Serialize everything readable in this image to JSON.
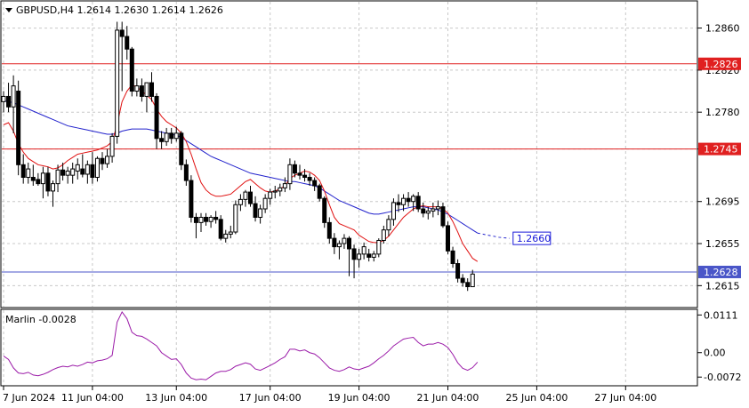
{
  "header": {
    "symbol_line": "GBPUSD,H4  1.2614 1.2630 1.2614 1.2626"
  },
  "chart_data": [
    {
      "type": "candlestick",
      "title": "GBPUSD,H4  1.2614 1.2630 1.2614 1.2626",
      "symbol": "GBPUSD",
      "timeframe": "H4",
      "last_ohlc": {
        "open": 1.2614,
        "high": 1.263,
        "low": 1.2614,
        "close": 1.2626
      },
      "ylim": [
        1.2595,
        1.2885
      ],
      "y_ticks": [
        "1.2860",
        "1.2820",
        "1.2780",
        "1.2745",
        "1.2695",
        "1.2655",
        "1.2615"
      ],
      "x_tick_labels": [
        "7 Jun 2024",
        "11 Jun 04:00",
        "13 Jun 04:00",
        "17 Jun 04:00",
        "19 Jun 04:00",
        "21 Jun 04:00",
        "25 Jun 04:00",
        "27 Jun 04:00"
      ],
      "x_tick_index": [
        0,
        18,
        35,
        54,
        72,
        90,
        108,
        126
      ],
      "grid": true,
      "levels": [
        {
          "label": "1.2826",
          "value": 1.2826,
          "color": "#e02020",
          "style": "solid"
        },
        {
          "label": "1.2745",
          "value": 1.2745,
          "color": "#e02020",
          "style": "solid"
        },
        {
          "label": "1.2628",
          "value": 1.2628,
          "color": "#4a56c8",
          "style": "solid"
        }
      ],
      "forecast_label": {
        "label": "1.2660",
        "value": 1.266,
        "color": "#1818d8"
      },
      "candles": [
        [
          1.279,
          1.28,
          1.278,
          1.2795
        ],
        [
          1.2795,
          1.2808,
          1.278,
          1.2785
        ],
        [
          1.2785,
          1.2815,
          1.276,
          1.2805
        ],
        [
          1.28,
          1.281,
          1.272,
          1.273
        ],
        [
          1.273,
          1.274,
          1.2712,
          1.2718
        ],
        [
          1.2718,
          1.2732,
          1.2712,
          1.2726
        ],
        [
          1.2718,
          1.273,
          1.271,
          1.2715
        ],
        [
          1.2716,
          1.2722,
          1.271,
          1.2712
        ],
        [
          1.2712,
          1.2728,
          1.2698,
          1.2722
        ],
        [
          1.2722,
          1.2728,
          1.27,
          1.2705
        ],
        [
          1.2705,
          1.2715,
          1.269,
          1.2712
        ],
        [
          1.2712,
          1.273,
          1.2704,
          1.2725
        ],
        [
          1.2725,
          1.2732,
          1.2715,
          1.272
        ],
        [
          1.272,
          1.2728,
          1.2712,
          1.2724
        ],
        [
          1.272,
          1.2732,
          1.2712,
          1.2726
        ],
        [
          1.2724,
          1.2736,
          1.2716,
          1.273
        ],
        [
          1.2726,
          1.274,
          1.2718,
          1.2721
        ],
        [
          1.2721,
          1.2734,
          1.2712,
          1.273
        ],
        [
          1.273,
          1.2742,
          1.2712,
          1.2718
        ],
        [
          1.2718,
          1.2738,
          1.2714,
          1.2736
        ],
        [
          1.2736,
          1.2742,
          1.2725,
          1.2731
        ],
        [
          1.2731,
          1.2745,
          1.2727,
          1.2738
        ],
        [
          1.2738,
          1.276,
          1.2732,
          1.2757
        ],
        [
          1.2757,
          1.2866,
          1.275,
          1.2858
        ],
        [
          1.2858,
          1.2866,
          1.28,
          1.2852
        ],
        [
          1.2852,
          1.2862,
          1.283,
          1.284
        ],
        [
          1.284,
          1.2842,
          1.2795,
          1.28
        ],
        [
          1.28,
          1.2812,
          1.2795,
          1.2805
        ],
        [
          1.2805,
          1.2812,
          1.279,
          1.2795
        ],
        [
          1.2795,
          1.2808,
          1.278,
          1.2808
        ],
        [
          1.2808,
          1.2818,
          1.279,
          1.2795
        ],
        [
          1.2795,
          1.2798,
          1.2745,
          1.2755
        ],
        [
          1.2755,
          1.2762,
          1.2745,
          1.2752
        ],
        [
          1.2752,
          1.2765,
          1.2748,
          1.276
        ],
        [
          1.276,
          1.2765,
          1.275,
          1.2755
        ],
        [
          1.2755,
          1.2766,
          1.2752,
          1.276
        ],
        [
          1.276,
          1.2762,
          1.2725,
          1.273
        ],
        [
          1.273,
          1.2735,
          1.271,
          1.2715
        ],
        [
          1.2715,
          1.272,
          1.2675,
          1.268
        ],
        [
          1.268,
          1.2684,
          1.266,
          1.2675
        ],
        [
          1.2675,
          1.2684,
          1.2666,
          1.268
        ],
        [
          1.268,
          1.2684,
          1.2672,
          1.2676
        ],
        [
          1.2676,
          1.2682,
          1.267,
          1.268
        ],
        [
          1.268,
          1.2686,
          1.2674,
          1.2678
        ],
        [
          1.2678,
          1.2682,
          1.2658,
          1.266
        ],
        [
          1.266,
          1.2668,
          1.2656,
          1.2664
        ],
        [
          1.2664,
          1.2672,
          1.266,
          1.2666
        ],
        [
          1.2666,
          1.2696,
          1.2664,
          1.2692
        ],
        [
          1.2692,
          1.2702,
          1.2686,
          1.2697
        ],
        [
          1.2697,
          1.2706,
          1.269,
          1.2704
        ],
        [
          1.2704,
          1.271,
          1.269,
          1.2693
        ],
        [
          1.2693,
          1.27,
          1.2676,
          1.268
        ],
        [
          1.268,
          1.2692,
          1.2674,
          1.2688
        ],
        [
          1.2688,
          1.2702,
          1.2684,
          1.2698
        ],
        [
          1.2698,
          1.2707,
          1.2692,
          1.2704
        ],
        [
          1.2704,
          1.271,
          1.2698,
          1.2705
        ],
        [
          1.2705,
          1.2712,
          1.27,
          1.2708
        ],
        [
          1.2708,
          1.2718,
          1.2704,
          1.2712
        ],
        [
          1.2712,
          1.2736,
          1.2706,
          1.273
        ],
        [
          1.273,
          1.2734,
          1.2718,
          1.2722
        ],
        [
          1.2722,
          1.273,
          1.2716,
          1.272
        ],
        [
          1.272,
          1.2726,
          1.2714,
          1.2718
        ],
        [
          1.2718,
          1.2722,
          1.271,
          1.2715
        ],
        [
          1.2715,
          1.2718,
          1.2705,
          1.271
        ],
        [
          1.271,
          1.2712,
          1.2695,
          1.2698
        ],
        [
          1.2698,
          1.27,
          1.267,
          1.2675
        ],
        [
          1.2675,
          1.268,
          1.2655,
          1.266
        ],
        [
          1.266,
          1.2665,
          1.2645,
          1.2652
        ],
        [
          1.2652,
          1.2658,
          1.264,
          1.2655
        ],
        [
          1.2655,
          1.2664,
          1.265,
          1.266
        ],
        [
          1.266,
          1.2662,
          1.2624,
          1.265
        ],
        [
          1.265,
          1.2654,
          1.2622,
          1.264
        ],
        [
          1.264,
          1.265,
          1.2632,
          1.2645
        ],
        [
          1.2645,
          1.2656,
          1.264,
          1.2652
        ],
        [
          1.2645,
          1.265,
          1.2638,
          1.2642
        ],
        [
          1.2642,
          1.2648,
          1.2638,
          1.2645
        ],
        [
          1.2645,
          1.266,
          1.2642,
          1.2658
        ],
        [
          1.2658,
          1.2672,
          1.2655,
          1.2668
        ],
        [
          1.2668,
          1.2682,
          1.2662,
          1.2678
        ],
        [
          1.2678,
          1.2698,
          1.2672,
          1.2694
        ],
        [
          1.2694,
          1.2702,
          1.2685,
          1.2692
        ],
        [
          1.2692,
          1.2702,
          1.2686,
          1.2698
        ],
        [
          1.2698,
          1.2704,
          1.269,
          1.2695
        ],
        [
          1.2695,
          1.2702,
          1.2686,
          1.27
        ],
        [
          1.27,
          1.2704,
          1.2685,
          1.2688
        ],
        [
          1.2688,
          1.2694,
          1.268,
          1.2684
        ],
        [
          1.2684,
          1.269,
          1.2678,
          1.2686
        ],
        [
          1.2686,
          1.2694,
          1.268,
          1.2688
        ],
        [
          1.2688,
          1.2696,
          1.2682,
          1.269
        ],
        [
          1.269,
          1.2694,
          1.267,
          1.2672
        ],
        [
          1.2672,
          1.2676,
          1.2645,
          1.2648
        ],
        [
          1.2648,
          1.2652,
          1.2632,
          1.2636
        ],
        [
          1.2636,
          1.264,
          1.2618,
          1.2622
        ],
        [
          1.2622,
          1.2626,
          1.2614,
          1.2618
        ],
        [
          1.2618,
          1.2622,
          1.261,
          1.2614
        ],
        [
          1.2614,
          1.263,
          1.2614,
          1.2626
        ]
      ],
      "ma_fast": {
        "color": "#e01010",
        "values": [
          1.2768,
          1.277,
          1.2762,
          1.275,
          1.2742,
          1.2736,
          1.2733,
          1.273,
          1.2729,
          1.2728,
          1.2726,
          1.2727,
          1.273,
          1.2734,
          1.2737,
          1.274,
          1.2741,
          1.2742,
          1.2743,
          1.2744,
          1.2746,
          1.2748,
          1.2752,
          1.2768,
          1.279,
          1.28,
          1.2806,
          1.2804,
          1.28,
          1.2796,
          1.2792,
          1.2783,
          1.2776,
          1.2771,
          1.2768,
          1.2765,
          1.276,
          1.2752,
          1.274,
          1.2726,
          1.2713,
          1.2706,
          1.2702,
          1.27,
          1.27,
          1.2701,
          1.2702,
          1.2706,
          1.271,
          1.2714,
          1.2716,
          1.2712,
          1.2708,
          1.2705,
          1.2704,
          1.2705,
          1.2707,
          1.271,
          1.2717,
          1.272,
          1.2722,
          1.2724,
          1.2723,
          1.272,
          1.2715,
          1.2705,
          1.2692,
          1.268,
          1.2674,
          1.2672,
          1.267,
          1.2668,
          1.2663,
          1.266,
          1.2657,
          1.2656,
          1.2656,
          1.2658,
          1.2662,
          1.2668,
          1.2674,
          1.268,
          1.2684,
          1.2688,
          1.269,
          1.2691,
          1.269,
          1.269,
          1.269,
          1.2688,
          1.2684,
          1.2676,
          1.2666,
          1.2655,
          1.2648,
          1.2641,
          1.2638
        ]
      },
      "ma_slow": {
        "color": "#2222cc",
        "values": [
          1.2791,
          1.279,
          1.2789,
          1.2787,
          1.2785,
          1.2783,
          1.2781,
          1.2779,
          1.2777,
          1.2775,
          1.2773,
          1.2771,
          1.2769,
          1.2767,
          1.2766,
          1.2765,
          1.2764,
          1.2763,
          1.2762,
          1.2761,
          1.276,
          1.2759,
          1.2759,
          1.276,
          1.2762,
          1.2763,
          1.2764,
          1.2764,
          1.2764,
          1.2764,
          1.2763,
          1.2762,
          1.2761,
          1.276,
          1.2759,
          1.2758,
          1.2756,
          1.2753,
          1.275,
          1.2747,
          1.2744,
          1.2741,
          1.2738,
          1.2736,
          1.2734,
          1.2732,
          1.273,
          1.2728,
          1.2726,
          1.2724,
          1.2722,
          1.2721,
          1.272,
          1.2719,
          1.2718,
          1.2717,
          1.2716,
          1.2715,
          1.2714,
          1.2714,
          1.2713,
          1.2712,
          1.2711,
          1.271,
          1.2708,
          1.2705,
          1.2702,
          1.2699,
          1.2696,
          1.2694,
          1.2692,
          1.269,
          1.2688,
          1.2686,
          1.2684,
          1.2683,
          1.2683,
          1.2684,
          1.2685,
          1.2686,
          1.2687,
          1.2688,
          1.2689,
          1.269,
          1.269,
          1.269,
          1.2689,
          1.2688,
          1.2687,
          1.2685,
          1.2683,
          1.268,
          1.2677,
          1.2674,
          1.2671,
          1.2668,
          1.2665
        ]
      },
      "ma_slow_forecast": [
        1.2665,
        1.2663,
        1.2661,
        1.266
      ]
    },
    {
      "type": "line",
      "title": "Marlin -0.0028",
      "indicator": "Marlin",
      "current_value": -0.0028,
      "ylim": [
        -0.0095,
        0.0125
      ],
      "y_ticks": [
        "0.0111",
        "0.00",
        "-0.0072"
      ],
      "color": "#9b1ba8",
      "values": [
        -0.001,
        -0.002,
        -0.0045,
        -0.006,
        -0.0062,
        -0.0058,
        -0.0066,
        -0.0068,
        -0.0064,
        -0.0058,
        -0.005,
        -0.0044,
        -0.004,
        -0.0042,
        -0.0037,
        -0.004,
        -0.0035,
        -0.0028,
        -0.003,
        -0.0024,
        -0.0022,
        -0.0018,
        -0.0008,
        0.009,
        0.012,
        0.01,
        0.006,
        0.005,
        0.0048,
        0.004,
        0.003,
        0.002,
        0.0,
        -0.001,
        -0.002,
        -0.0018,
        -0.0035,
        -0.006,
        -0.0075,
        -0.008,
        -0.0078,
        -0.008,
        -0.007,
        -0.006,
        -0.0055,
        -0.0055,
        -0.005,
        -0.004,
        -0.0035,
        -0.003,
        -0.0034,
        -0.0048,
        -0.0052,
        -0.0045,
        -0.0038,
        -0.003,
        -0.002,
        -0.0012,
        0.001,
        0.001,
        0.0005,
        0.0008,
        0.0,
        -0.0004,
        -0.0015,
        -0.003,
        -0.0045,
        -0.0052,
        -0.0055,
        -0.005,
        -0.0042,
        -0.0048,
        -0.005,
        -0.0045,
        -0.004,
        -0.003,
        -0.0018,
        -0.0008,
        0.0005,
        0.002,
        0.003,
        0.004,
        0.0043,
        0.0045,
        0.003,
        0.002,
        0.0025,
        0.0025,
        0.003,
        0.0025,
        0.0015,
        -0.0005,
        -0.003,
        -0.0046,
        -0.0052,
        -0.0044,
        -0.0028
      ]
    }
  ]
}
